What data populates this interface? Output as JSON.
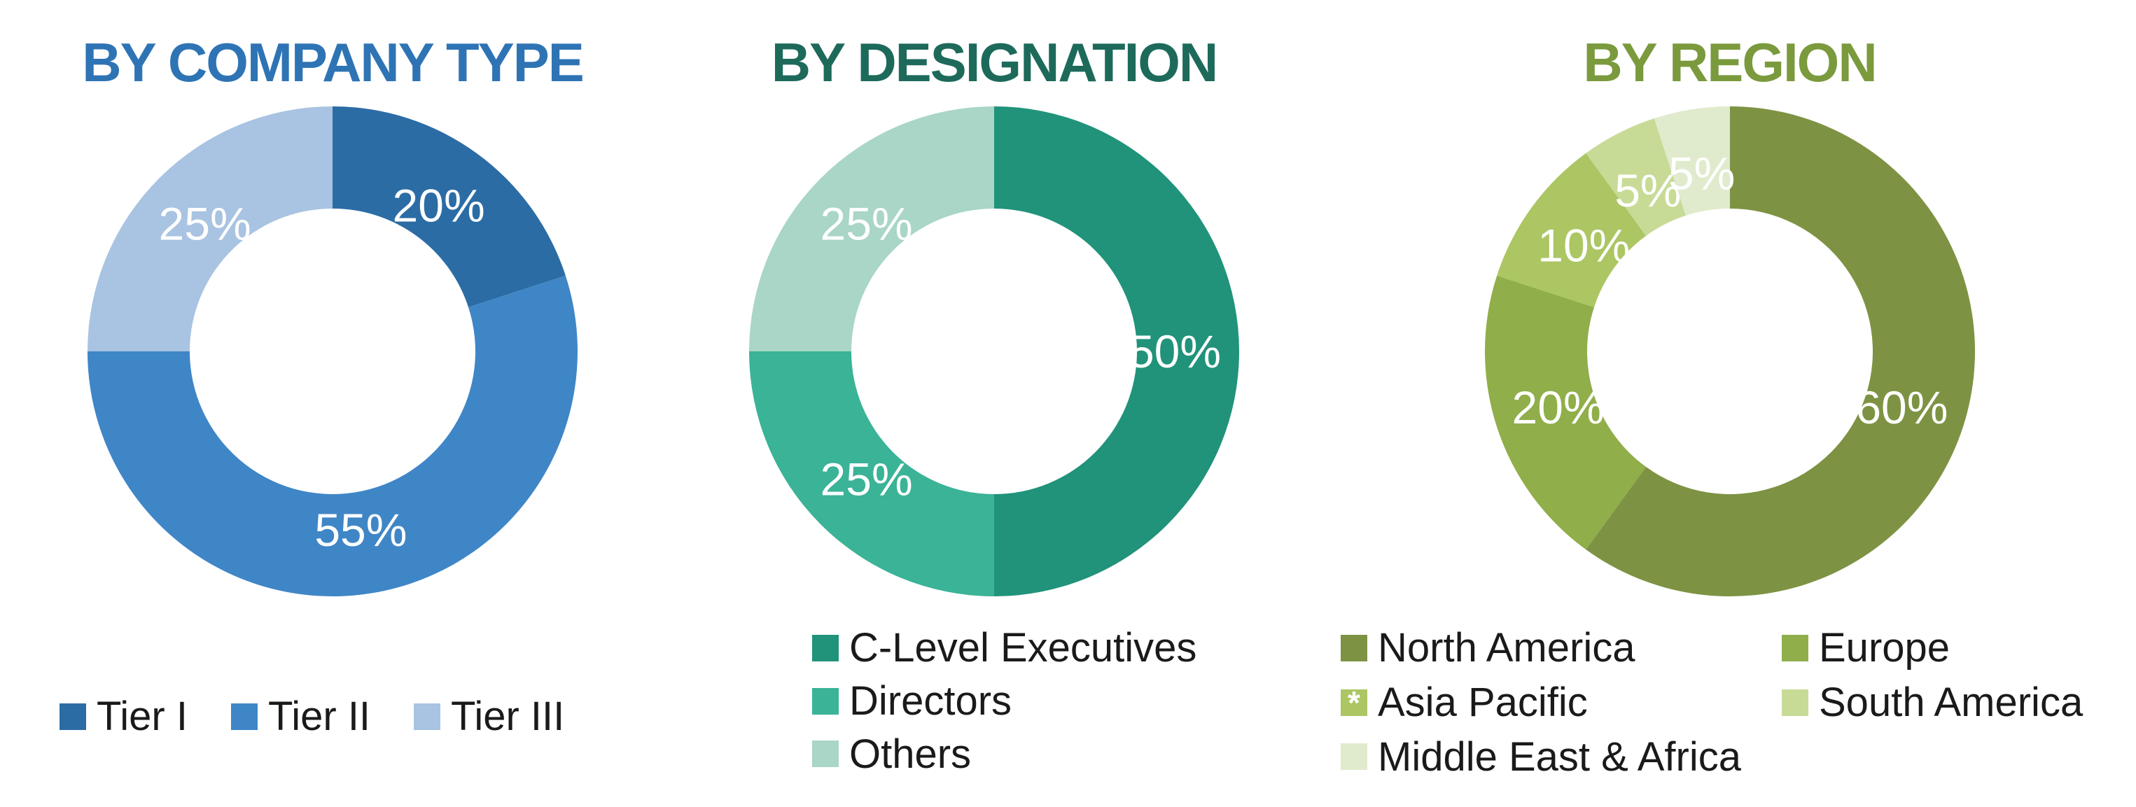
{
  "page": {
    "background": "#ffffff"
  },
  "chart_data": [
    {
      "type": "pie",
      "variant": "donut",
      "title": "BY COMPANY TYPE",
      "title_color": "#2e74b5",
      "labels": [
        "Tier I",
        "Tier II",
        "Tier III"
      ],
      "values": [
        20,
        55,
        25
      ],
      "slice_labels": [
        "20%",
        "55%",
        "25%"
      ],
      "colors": [
        "#2b6ca5",
        "#3f86c7",
        "#a9c3e2"
      ],
      "slice_label_color": "#ffffff",
      "legend_layout": "row",
      "legend_position": "bottom",
      "start_angle_deg": -90,
      "direction": "clockwise"
    },
    {
      "type": "pie",
      "variant": "donut",
      "title": "BY DESIGNATION",
      "title_color": "#1d6a5b",
      "labels": [
        "C-Level Executives",
        "Directors",
        "Others"
      ],
      "values": [
        50,
        25,
        25
      ],
      "slice_labels": [
        "50%",
        "25%",
        "25%"
      ],
      "colors": [
        "#20937a",
        "#3ab397",
        "#a9d6c6"
      ],
      "slice_label_color": "#ffffff",
      "legend_layout": "column",
      "legend_position": "bottom",
      "start_angle_deg": -90,
      "direction": "clockwise"
    },
    {
      "type": "pie",
      "variant": "donut",
      "title": "BY REGION",
      "title_color": "#7a9a3d",
      "labels": [
        "North America",
        "Europe",
        "Asia Pacific",
        "South America",
        "Middle East & Africa"
      ],
      "values": [
        60,
        20,
        10,
        5,
        5
      ],
      "slice_labels": [
        "60%",
        "20%",
        "10%",
        "5%",
        "5%"
      ],
      "colors": [
        "#7d9343",
        "#90ae49",
        "#abc663",
        "#c7db97",
        "#e0ebcd"
      ],
      "legend_marker_notes": [
        "",
        "",
        "*",
        "",
        ""
      ],
      "slice_label_color": "#ffffff",
      "legend_layout": "grid-2col",
      "legend_position": "bottom",
      "start_angle_deg": -90,
      "direction": "clockwise"
    }
  ]
}
